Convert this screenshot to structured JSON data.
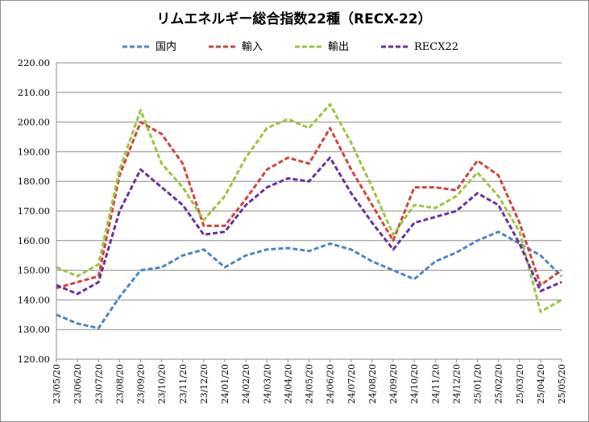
{
  "chart_data": {
    "type": "line",
    "title": "リムエネルギー総合指数22種（RECX-22）",
    "xlabel": "",
    "ylabel": "",
    "ylim": [
      120,
      220
    ],
    "yticks": [
      "120.00",
      "130.00",
      "140.00",
      "150.00",
      "160.00",
      "170.00",
      "180.00",
      "190.00",
      "200.00",
      "210.00",
      "220.00"
    ],
    "categories": [
      "23/05/20",
      "23/06/20",
      "23/07/20",
      "23/08/20",
      "23/09/20",
      "23/10/20",
      "23/11/20",
      "23/12/20",
      "24/01/20",
      "24/02/20",
      "24/03/20",
      "24/04/20",
      "24/05/20",
      "24/06/20",
      "24/07/20",
      "24/08/20",
      "24/09/20",
      "24/10/20",
      "24/11/20",
      "24/12/20",
      "25/01/20",
      "25/02/20",
      "25/03/20",
      "25/04/20",
      "25/05/20"
    ],
    "grid": true,
    "legend_position": "top",
    "series": [
      {
        "name": "国内",
        "color": "#4a86c6",
        "values": [
          135,
          132,
          130.5,
          141,
          150,
          151,
          155,
          157,
          151,
          155,
          157,
          157.5,
          156.5,
          159,
          157,
          153,
          150,
          147,
          153,
          156,
          160,
          163,
          159,
          155,
          148
        ]
      },
      {
        "name": "輸入",
        "color": "#d4423c",
        "values": [
          144,
          146,
          148,
          182,
          200,
          196,
          186,
          165,
          165,
          174,
          184,
          188,
          186,
          198,
          184,
          172,
          160,
          178,
          178,
          177,
          187,
          182,
          166,
          145,
          150
        ]
      },
      {
        "name": "輸出",
        "color": "#9cc53c",
        "values": [
          151,
          148,
          152,
          184,
          204,
          186,
          178,
          167,
          175,
          188,
          198,
          201,
          198,
          206,
          193,
          178,
          162,
          172,
          171,
          175,
          183,
          175,
          163,
          136,
          140
        ]
      },
      {
        "name": "RECX22",
        "color": "#6b2fa0",
        "values": [
          145,
          142,
          146,
          170,
          184,
          178,
          172,
          162,
          163,
          172,
          178,
          181,
          180,
          188,
          176,
          166,
          157,
          166,
          168,
          170,
          176,
          172,
          159,
          143,
          146
        ]
      }
    ]
  }
}
